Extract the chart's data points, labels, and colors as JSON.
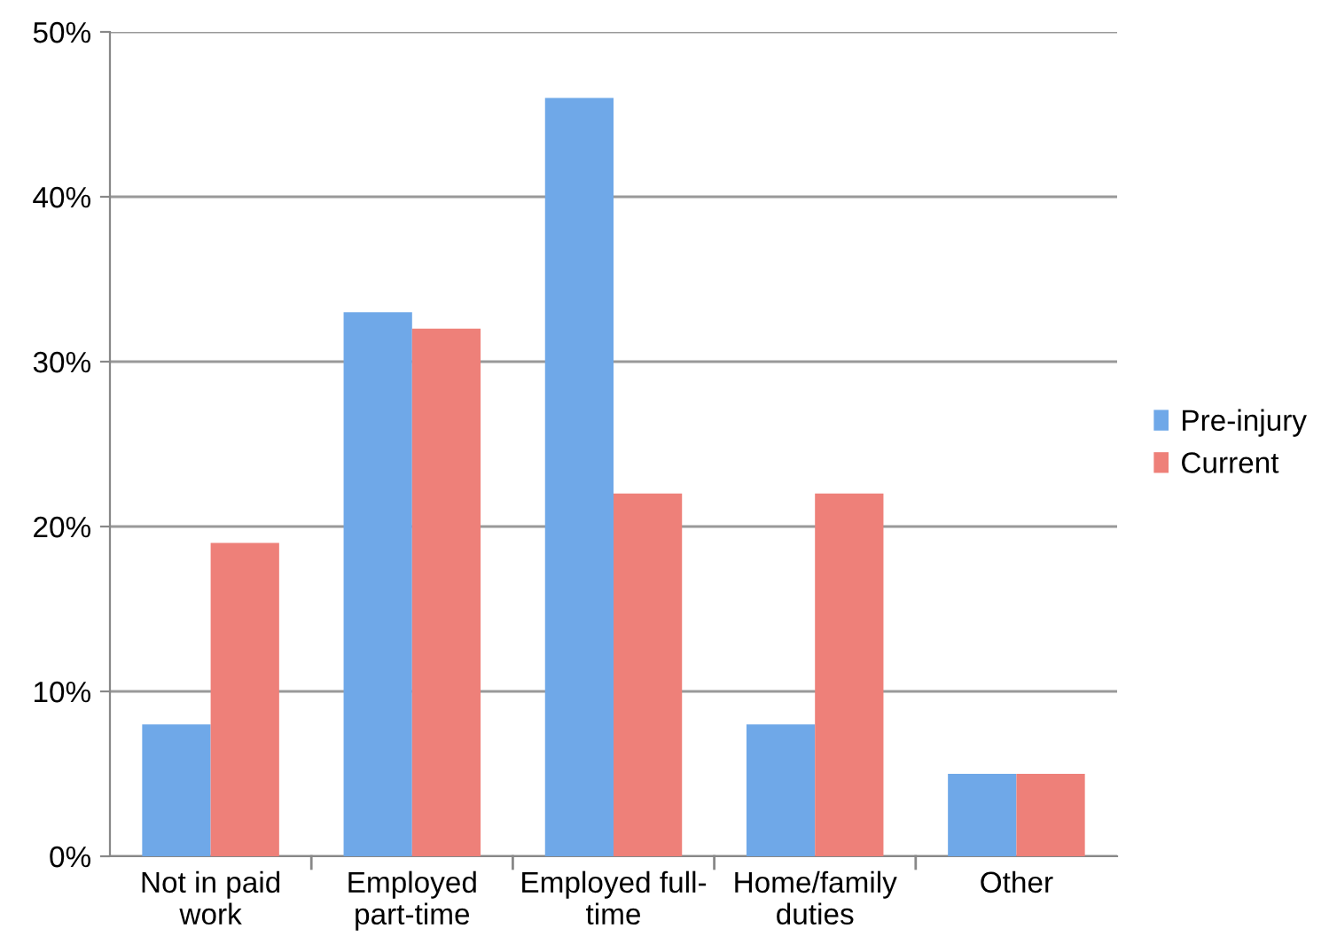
{
  "chart_data": {
    "type": "bar",
    "categories": [
      "Not in paid\nwork",
      "Employed\npart-time",
      "Employed full-\ntime",
      "Home/family\nduties",
      "Other"
    ],
    "series": [
      {
        "name": "Pre-injury",
        "color": "#6fa8e8",
        "values": [
          8,
          33,
          46,
          8,
          5
        ]
      },
      {
        "name": "Current",
        "color": "#ee8079",
        "values": [
          19,
          32,
          22,
          22,
          5
        ]
      }
    ],
    "ylim": [
      0,
      50
    ],
    "yticks": [
      {
        "value": 0,
        "label": "0%"
      },
      {
        "value": 10,
        "label": "10%"
      },
      {
        "value": 20,
        "label": "20%"
      },
      {
        "value": 30,
        "label": "30%"
      },
      {
        "value": 40,
        "label": "40%"
      },
      {
        "value": 50,
        "label": "50%"
      }
    ],
    "grid": "y",
    "legend": "right"
  }
}
